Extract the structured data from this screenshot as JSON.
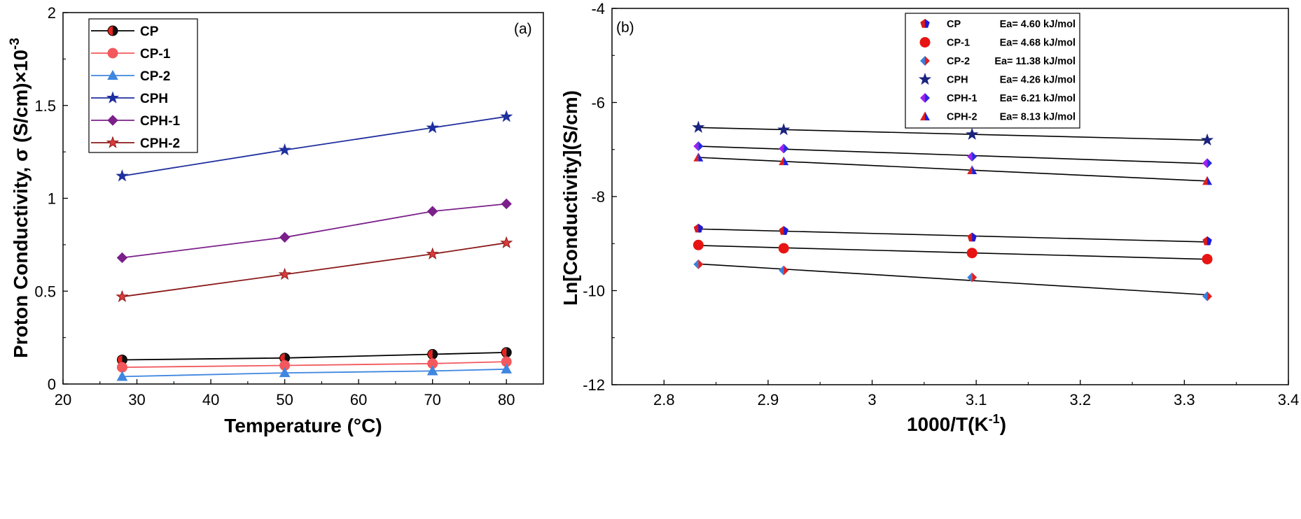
{
  "chart_data": [
    {
      "type": "line",
      "panel": "(a)",
      "xlabel": "Temperature (°C)",
      "ylabel": "Proton Conductivity, σ (S/cm)×10",
      "ylabel_sup": "-3",
      "xlim": [
        20,
        85
      ],
      "ylim": [
        0,
        2
      ],
      "xticks": [
        20,
        30,
        40,
        50,
        60,
        70,
        80
      ],
      "yticks": [
        0,
        0.5,
        1,
        1.5,
        2
      ],
      "yticklabels": [
        "0",
        "0.5",
        "1",
        "1.5",
        "2"
      ],
      "x": [
        28,
        50,
        70,
        80
      ],
      "legend_position": "top-left",
      "series": [
        {
          "name": "CP",
          "marker": "halfcircle",
          "color": "#000000",
          "fill": "#e8231f",
          "values": [
            0.13,
            0.14,
            0.16,
            0.17
          ]
        },
        {
          "name": "CP-1",
          "marker": "circle",
          "color": "#f2585c",
          "fill": "#f2585c",
          "values": [
            0.09,
            0.1,
            0.11,
            0.12
          ]
        },
        {
          "name": "CP-2",
          "marker": "triangle",
          "color": "#3f86e0",
          "fill": "#3f86e0",
          "values": [
            0.04,
            0.06,
            0.07,
            0.08
          ]
        },
        {
          "name": "CPH",
          "marker": "star",
          "color": "#1f2f9e",
          "fill": "#1f2f9e",
          "values": [
            1.12,
            1.26,
            1.38,
            1.44
          ]
        },
        {
          "name": "CPH-1",
          "marker": "diamond",
          "color": "#7b1f8a",
          "fill": "#7b1f8a",
          "values": [
            0.68,
            0.79,
            0.93,
            0.97
          ]
        },
        {
          "name": "CPH-2",
          "marker": "star",
          "color": "#8b1a1a",
          "fill": "#d93b3b",
          "values": [
            0.47,
            0.59,
            0.7,
            0.76
          ]
        }
      ]
    },
    {
      "type": "scatter",
      "panel": "(b)",
      "xlabel": "1000/T(K",
      "xlabel_sup": "-1",
      "xlabel_end": ")",
      "ylabel": "Ln[Conductivity](S/cm)",
      "xlim": [
        2.75,
        3.4
      ],
      "ylim": [
        -12,
        -4
      ],
      "xticks": [
        2.8,
        2.9,
        3.0,
        3.1,
        3.2,
        3.3,
        3.4
      ],
      "xticklabels": [
        "2.8",
        "2.9",
        "3",
        "3.1",
        "3.2",
        "3.3",
        "3.4"
      ],
      "yticks": [
        -12,
        -10,
        -8,
        -6,
        -4
      ],
      "x": [
        2.833,
        2.915,
        3.096,
        3.322
      ],
      "legend_position": "top-right",
      "fit_lines": "black linear fits",
      "series": [
        {
          "name": "CP",
          "ea": "Ea= 4.60 kJ/mol",
          "marker": "pentagon",
          "color": "#1a1ad8",
          "fill": "#1a1ad8",
          "fill2": "#d81a1a",
          "values": [
            -8.68,
            -8.73,
            -8.87,
            -8.95
          ]
        },
        {
          "name": "CP-1",
          "ea": "Ea= 4.68 kJ/mol",
          "marker": "circle",
          "color": "#e81414",
          "fill": "#e81414",
          "values": [
            -9.03,
            -9.1,
            -9.2,
            -9.33
          ]
        },
        {
          "name": "CP-2",
          "ea": "Ea= 11.38 kJ/mol",
          "marker": "diamond",
          "color": "#3a7fdc",
          "fill": "#3a7fdc",
          "fill2": "#e02020",
          "values": [
            -9.44,
            -9.57,
            -9.72,
            -10.12
          ]
        },
        {
          "name": "CPH",
          "ea": "Ea= 4.26 kJ/mol",
          "marker": "star",
          "color": "#1a237e",
          "fill": "#1a237e",
          "values": [
            -6.53,
            -6.58,
            -6.68,
            -6.8
          ]
        },
        {
          "name": "CPH-1",
          "ea": "Ea= 6.21 kJ/mol",
          "marker": "diamond",
          "color": "#8a2be2",
          "fill": "#a020f0",
          "fill2": "#2a2ae0",
          "values": [
            -6.93,
            -6.98,
            -7.15,
            -7.29
          ]
        },
        {
          "name": "CPH-2",
          "ea": "Ea= 8.13 kJ/mol",
          "marker": "triangle",
          "color": "#e02020",
          "fill": "#e02020",
          "fill2": "#2020d8",
          "values": [
            -7.17,
            -7.25,
            -7.44,
            -7.67
          ]
        }
      ]
    }
  ]
}
